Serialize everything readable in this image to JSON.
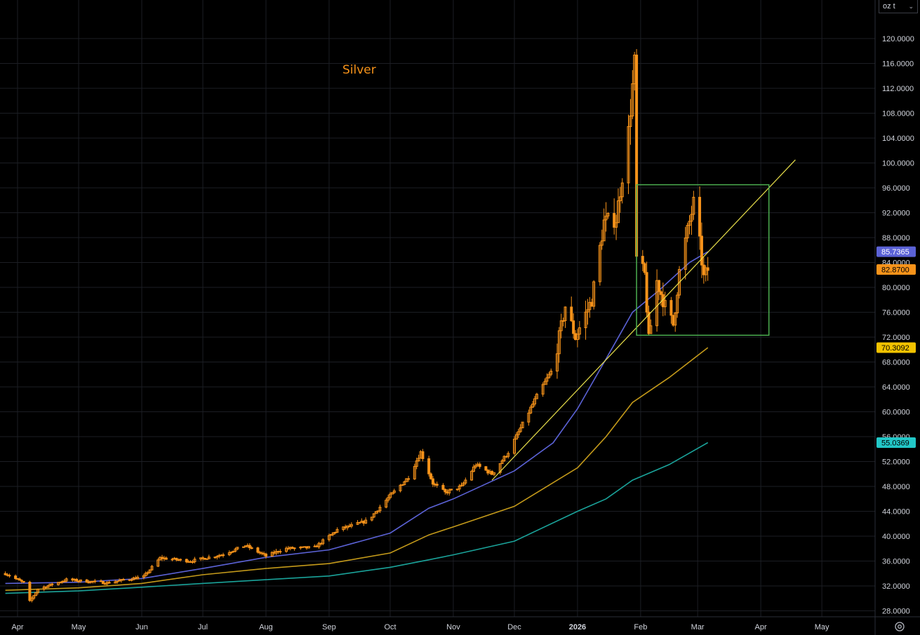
{
  "unit_selector": {
    "value": "oz t",
    "chevron_icon": "chevron-down-icon"
  },
  "settings_icon": "gear-icon",
  "colors": {
    "background": "#000000",
    "grid": "#1c1e24",
    "candle": "#f7931a",
    "ma_blue": "#5b62d6",
    "ma_gold": "#c49a1a",
    "ma_teal": "#1aa39a",
    "trendline": "#e9e04b",
    "box": "#4caf50"
  },
  "chart_data": {
    "type": "candlestick",
    "title": "Silver",
    "y_ticks": [
      "28.0000",
      "32.0000",
      "36.0000",
      "40.0000",
      "44.0000",
      "48.0000",
      "52.0000",
      "56.0000",
      "60.0000",
      "64.0000",
      "68.0000",
      "72.0000",
      "76.0000",
      "80.0000",
      "84.0000",
      "88.0000",
      "92.0000",
      "96.0000",
      "100.0000",
      "104.0000",
      "108.0000",
      "112.0000",
      "116.0000",
      "120.0000"
    ],
    "ylim": [
      25.0,
      124.0
    ],
    "x_ticks": [
      {
        "label": "Apr",
        "bold": false
      },
      {
        "label": "May",
        "bold": false
      },
      {
        "label": "Jun",
        "bold": false
      },
      {
        "label": "Jul",
        "bold": false
      },
      {
        "label": "Aug",
        "bold": false
      },
      {
        "label": "Sep",
        "bold": false
      },
      {
        "label": "Oct",
        "bold": false
      },
      {
        "label": "Nov",
        "bold": false
      },
      {
        "label": "Dec",
        "bold": false
      },
      {
        "label": "2026",
        "bold": true
      },
      {
        "label": "Feb",
        "bold": false
      },
      {
        "label": "Mar",
        "bold": false
      },
      {
        "label": "Apr",
        "bold": false
      },
      {
        "label": "May",
        "bold": false
      }
    ],
    "price_keypoints": [
      [
        "2025-03-26",
        34.0
      ],
      [
        "2025-04-04",
        32.5
      ],
      [
        "2025-04-07",
        29.5
      ],
      [
        "2025-04-11",
        31.5
      ],
      [
        "2025-04-25",
        33.0
      ],
      [
        "2025-05-15",
        32.5
      ],
      [
        "2025-06-02",
        33.5
      ],
      [
        "2025-06-10",
        36.5
      ],
      [
        "2025-06-25",
        36.0
      ],
      [
        "2025-07-10",
        37.0
      ],
      [
        "2025-07-22",
        38.5
      ],
      [
        "2025-08-01",
        36.8
      ],
      [
        "2025-08-10",
        38.0
      ],
      [
        "2025-08-25",
        38.2
      ],
      [
        "2025-09-05",
        41.0
      ],
      [
        "2025-09-20",
        42.5
      ],
      [
        "2025-10-01",
        46.5
      ],
      [
        "2025-10-10",
        49.5
      ],
      [
        "2025-10-16",
        53.5
      ],
      [
        "2025-10-22",
        48.5
      ],
      [
        "2025-10-28",
        47.0
      ],
      [
        "2025-11-05",
        48.0
      ],
      [
        "2025-11-12",
        51.5
      ],
      [
        "2025-11-20",
        50.0
      ],
      [
        "2025-11-28",
        53.5
      ],
      [
        "2025-12-05",
        58.0
      ],
      [
        "2025-12-12",
        62.5
      ],
      [
        "2025-12-20",
        67.0
      ],
      [
        "2025-12-26",
        77.0
      ],
      [
        "2025-12-31",
        72.0
      ],
      [
        "2026-01-08",
        78.0
      ],
      [
        "2026-01-14",
        90.5
      ],
      [
        "2026-01-20",
        91.0
      ],
      [
        "2026-01-26",
        105.0
      ],
      [
        "2026-01-29",
        116.0
      ],
      [
        "2026-01-30",
        84.5
      ],
      [
        "2026-02-03",
        82.0
      ],
      [
        "2026-02-05",
        71.5
      ],
      [
        "2026-02-09",
        81.0
      ],
      [
        "2026-02-13",
        77.0
      ],
      [
        "2026-02-17",
        74.0
      ],
      [
        "2026-02-20",
        82.5
      ],
      [
        "2026-02-24",
        89.0
      ],
      [
        "2026-02-27",
        93.5
      ],
      [
        "2026-03-02",
        87.0
      ],
      [
        "2026-03-04",
        81.5
      ],
      [
        "2026-03-06",
        82.87
      ]
    ],
    "series": [
      {
        "color_key": "ma_blue",
        "points": [
          [
            "2025-03-26",
            32.4
          ],
          [
            "2025-05-01",
            32.6
          ],
          [
            "2025-06-01",
            33.2
          ],
          [
            "2025-07-01",
            34.8
          ],
          [
            "2025-08-01",
            36.6
          ],
          [
            "2025-09-01",
            37.8
          ],
          [
            "2025-10-01",
            40.5
          ],
          [
            "2025-10-20",
            44.5
          ],
          [
            "2025-11-01",
            46.0
          ],
          [
            "2025-12-01",
            50.5
          ],
          [
            "2025-12-20",
            55.0
          ],
          [
            "2026-01-01",
            60.5
          ],
          [
            "2026-01-15",
            68.5
          ],
          [
            "2026-01-28",
            76.0
          ],
          [
            "2026-02-10",
            79.5
          ],
          [
            "2026-02-25",
            84.0
          ],
          [
            "2026-03-06",
            85.7365
          ]
        ]
      },
      {
        "color_key": "ma_gold",
        "points": [
          [
            "2025-03-26",
            31.3
          ],
          [
            "2025-05-01",
            31.7
          ],
          [
            "2025-06-01",
            32.4
          ],
          [
            "2025-07-01",
            33.8
          ],
          [
            "2025-08-01",
            34.8
          ],
          [
            "2025-09-01",
            35.6
          ],
          [
            "2025-10-01",
            37.3
          ],
          [
            "2025-10-20",
            40.2
          ],
          [
            "2025-11-01",
            41.5
          ],
          [
            "2025-12-01",
            44.8
          ],
          [
            "2026-01-01",
            51.0
          ],
          [
            "2026-01-15",
            56.0
          ],
          [
            "2026-01-28",
            61.5
          ],
          [
            "2026-02-15",
            65.5
          ],
          [
            "2026-03-06",
            70.3092
          ]
        ]
      },
      {
        "color_key": "ma_teal",
        "points": [
          [
            "2025-03-26",
            30.8
          ],
          [
            "2025-05-01",
            31.2
          ],
          [
            "2025-06-01",
            31.8
          ],
          [
            "2025-07-01",
            32.4
          ],
          [
            "2025-08-01",
            33.0
          ],
          [
            "2025-09-01",
            33.6
          ],
          [
            "2025-10-01",
            35.0
          ],
          [
            "2025-10-20",
            36.2
          ],
          [
            "2025-11-01",
            37.0
          ],
          [
            "2025-12-01",
            39.2
          ],
          [
            "2026-01-01",
            44.0
          ],
          [
            "2026-01-15",
            46.0
          ],
          [
            "2026-01-28",
            49.0
          ],
          [
            "2026-02-15",
            51.5
          ],
          [
            "2026-03-06",
            55.0369
          ]
        ]
      }
    ],
    "price_badges": [
      {
        "label": "85.7365",
        "value": 85.7365,
        "bg_key": "ma_blue",
        "fg": "#ffffff"
      },
      {
        "label": "82.8700",
        "value": 82.87,
        "bg_key": "candle",
        "fg": "#000000"
      },
      {
        "label": "70.3092",
        "value": 70.3092,
        "bg_key": "badge_gold",
        "fg": "#000000"
      },
      {
        "label": "55.0369",
        "value": 55.0369,
        "bg_key": "badge_teal",
        "fg": "#000000"
      }
    ],
    "badge_colors": {
      "badge_gold": "#f2c200",
      "badge_teal": "#22c7c7"
    },
    "trendline": {
      "from": [
        "2025-11-20",
        49.0
      ],
      "to": [
        "2026-04-18",
        100.5
      ]
    },
    "rectangle": {
      "x0": "2026-01-30",
      "x1": "2026-04-05",
      "y0": 72.3,
      "y1": 96.5
    }
  }
}
